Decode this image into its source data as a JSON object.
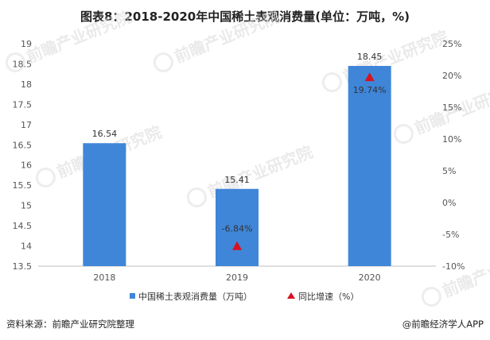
{
  "title": "图表8：2018-2020年中国稀土表观消费量(单位：万吨，%)",
  "chart_data": {
    "type": "bar",
    "categories": [
      "2018",
      "2019",
      "2020"
    ],
    "series": [
      {
        "name": "中国稀土表观消费量（万吨）",
        "type": "bar",
        "axis": "left",
        "values": [
          16.54,
          15.41,
          18.45
        ],
        "labels": [
          "16.54",
          "15.41",
          "18.45"
        ],
        "color": "#3f86d8"
      },
      {
        "name": "同比增速（%）",
        "type": "scatter",
        "marker": "triangle",
        "axis": "right",
        "values": [
          null,
          -6.84,
          19.74
        ],
        "labels": [
          "",
          "-6.84%",
          "19.74%"
        ],
        "color": "#d9121e"
      }
    ],
    "y_left": {
      "ylim": [
        13.5,
        19
      ],
      "ticks": [
        13.5,
        14,
        14.5,
        15,
        15.5,
        16,
        16.5,
        17,
        17.5,
        18,
        18.5,
        19
      ],
      "tick_labels": [
        "13.5",
        "14",
        "14.5",
        "15",
        "15.5",
        "16",
        "16.5",
        "17",
        "17.5",
        "18",
        "18.5",
        "19"
      ]
    },
    "y_right": {
      "ylim": [
        -10,
        25
      ],
      "ticks": [
        -10,
        -5,
        0,
        5,
        10,
        15,
        20,
        25
      ],
      "tick_labels": [
        "-10%",
        "-5%",
        "0%",
        "5%",
        "10%",
        "15%",
        "20%",
        "25%"
      ]
    },
    "grid": false,
    "legend_position": "bottom"
  },
  "watermark": {
    "brand": "前瞻产业研究院"
  },
  "footer": {
    "source": "资料来源：前瞻产业研究院整理",
    "credit": "@前瞻经济学人APP"
  }
}
